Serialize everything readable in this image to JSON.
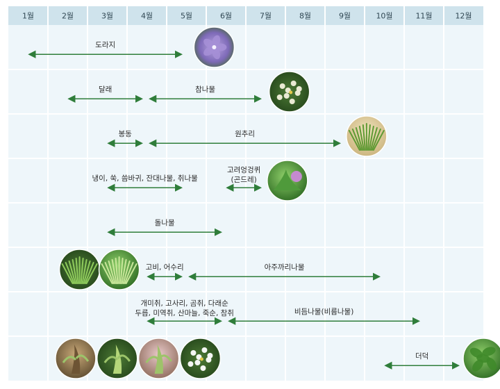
{
  "months": [
    "1월",
    "2월",
    "3월",
    "4월",
    "5월",
    "6월",
    "7월",
    "8월",
    "9월",
    "10월",
    "11월",
    "12월"
  ],
  "colors": {
    "header_bg": "#cfe3ec",
    "header_text": "#2f4652",
    "cell_bg": "#eef6fa",
    "grid_line": "#ffffff",
    "arrow": "#2f7d3a",
    "label_text": "#2b2b2b"
  },
  "rows": [
    {
      "spans": [
        {
          "label": "도라지",
          "start_month": 1,
          "end_month": 4.9
        }
      ],
      "photos": [
        {
          "icon": "bellflower-photo-icon",
          "month": 5.7
        }
      ]
    },
    {
      "spans": [
        {
          "label": "달래",
          "start_month": 2,
          "end_month": 3.9
        },
        {
          "label": "참나물",
          "start_month": 4.05,
          "end_month": 6.9
        }
      ],
      "photos": [
        {
          "icon": "white-flower-photo-icon",
          "month": 7.6
        }
      ]
    },
    {
      "spans": [
        {
          "label": "봉동",
          "start_month": 3,
          "end_month": 3.9
        },
        {
          "label": "원추리",
          "start_month": 4.05,
          "end_month": 8.9
        }
      ],
      "photos": [
        {
          "icon": "grass-photo-icon",
          "month": 9.55
        }
      ]
    },
    {
      "spans": [
        {
          "label": "냉이, 쑥, 씀바귀, 잔대나물, 취나물",
          "start_month": 3,
          "end_month": 4.9
        },
        {
          "label_lines": [
            "고려엉겅퀴",
            "(곤드레)"
          ],
          "start_month": 6,
          "end_month": 6.9
        }
      ],
      "photos": [
        {
          "icon": "thistle-photo-icon",
          "month": 7.55
        }
      ]
    },
    {
      "spans": [
        {
          "label": "돌나물",
          "start_month": 3,
          "end_month": 5.9
        }
      ],
      "photos": []
    },
    {
      "spans": [
        {
          "label": "고비, 어수리",
          "start_month": 4,
          "end_month": 4.9
        },
        {
          "label": "아주까리나물",
          "start_month": 5.05,
          "end_month": 9.9
        }
      ],
      "photos": [
        {
          "icon": "fern-photo-icon",
          "month": 2.3
        },
        {
          "icon": "fern-leaf-photo-icon",
          "month": 3.3
        }
      ]
    },
    {
      "spans": [
        {
          "label_lines": [
            "개미취, 고사리, 곰취, 다래순",
            "두릅, 미역취, 산마늘, 죽순, 참취"
          ],
          "start_month": 4,
          "end_month": 5.9
        },
        {
          "label": "비듬나물(비름나물)",
          "start_month": 6.05,
          "end_month": 10.9
        }
      ],
      "photos": []
    },
    {
      "spans": [
        {
          "label": "더덕",
          "start_month": 10,
          "end_month": 11.9
        }
      ],
      "photos": [
        {
          "icon": "bamboo-shoot-photo-icon",
          "month": 2.2
        },
        {
          "icon": "sprout-photo-icon",
          "month": 3.25
        },
        {
          "icon": "bud-photo-icon",
          "month": 4.3
        },
        {
          "icon": "daisy-photo-icon",
          "month": 5.35
        },
        {
          "icon": "leafy-plant-photo-icon",
          "month": 12.5
        }
      ]
    }
  ]
}
